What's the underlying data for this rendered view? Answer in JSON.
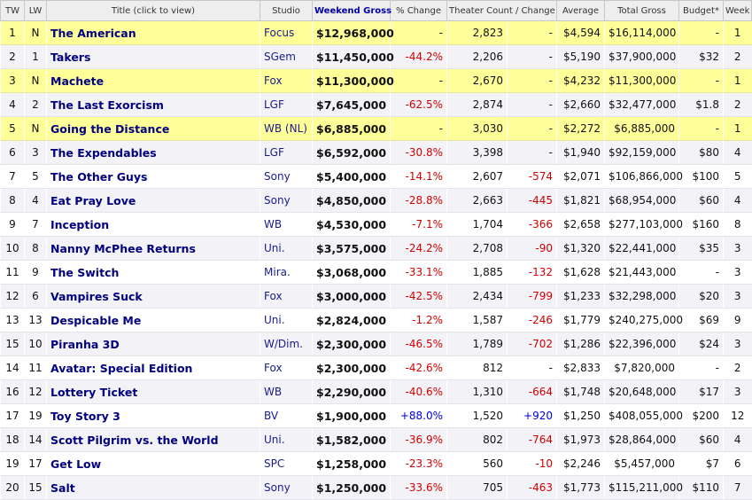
{
  "headers": {
    "tw": "TW",
    "lw": "LW",
    "title": "Title (click to view)",
    "studio": "Studio",
    "gross": "Weekend Gross",
    "change": "% Change",
    "theaters": "Theater Count / Change",
    "average": "Average",
    "total": "Total Gross",
    "budget": "Budget*",
    "week": "Week"
  },
  "rows": [
    {
      "tw": "1",
      "lw": "N",
      "title": "The American",
      "studio": "Focus",
      "gross": "$12,968,000",
      "change": "-",
      "theaters": "2,823",
      "theater_change": "-",
      "average": "$4,594",
      "total": "$16,114,000",
      "budget": "-",
      "week": "1",
      "is_new": true
    },
    {
      "tw": "2",
      "lw": "1",
      "title": "Takers",
      "studio": "SGem",
      "gross": "$11,450,000",
      "change": "-44.2%",
      "theaters": "2,206",
      "theater_change": "-",
      "average": "$5,190",
      "total": "$37,900,000",
      "budget": "$32",
      "week": "2",
      "is_new": false
    },
    {
      "tw": "3",
      "lw": "N",
      "title": "Machete",
      "studio": "Fox",
      "gross": "$11,300,000",
      "change": "-",
      "theaters": "2,670",
      "theater_change": "-",
      "average": "$4,232",
      "total": "$11,300,000",
      "budget": "-",
      "week": "1",
      "is_new": true
    },
    {
      "tw": "4",
      "lw": "2",
      "title": "The Last Exorcism",
      "studio": "LGF",
      "gross": "$7,645,000",
      "change": "-62.5%",
      "theaters": "2,874",
      "theater_change": "-",
      "average": "$2,660",
      "total": "$32,477,000",
      "budget": "$1.8",
      "week": "2",
      "is_new": false
    },
    {
      "tw": "5",
      "lw": "N",
      "title": "Going the Distance",
      "studio": "WB (NL)",
      "gross": "$6,885,000",
      "change": "-",
      "theaters": "3,030",
      "theater_change": "-",
      "average": "$2,272",
      "total": "$6,885,000",
      "budget": "-",
      "week": "1",
      "is_new": true
    },
    {
      "tw": "6",
      "lw": "3",
      "title": "The Expendables",
      "studio": "LGF",
      "gross": "$6,592,000",
      "change": "-30.8%",
      "theaters": "3,398",
      "theater_change": "-",
      "average": "$1,940",
      "total": "$92,159,000",
      "budget": "$80",
      "week": "4",
      "is_new": false
    },
    {
      "tw": "7",
      "lw": "5",
      "title": "The Other Guys",
      "studio": "Sony",
      "gross": "$5,400,000",
      "change": "-14.1%",
      "theaters": "2,607",
      "theater_change": "-574",
      "average": "$2,071",
      "total": "$106,866,000",
      "budget": "$100",
      "week": "5",
      "is_new": false
    },
    {
      "tw": "8",
      "lw": "4",
      "title": "Eat Pray Love",
      "studio": "Sony",
      "gross": "$4,850,000",
      "change": "-28.8%",
      "theaters": "2,663",
      "theater_change": "-445",
      "average": "$1,821",
      "total": "$68,954,000",
      "budget": "$60",
      "week": "4",
      "is_new": false
    },
    {
      "tw": "9",
      "lw": "7",
      "title": "Inception",
      "studio": "WB",
      "gross": "$4,530,000",
      "change": "-7.1%",
      "theaters": "1,704",
      "theater_change": "-366",
      "average": "$2,658",
      "total": "$277,103,000",
      "budget": "$160",
      "week": "8",
      "is_new": false
    },
    {
      "tw": "10",
      "lw": "8",
      "title": "Nanny McPhee Returns",
      "studio": "Uni.",
      "gross": "$3,575,000",
      "change": "-24.2%",
      "theaters": "2,708",
      "theater_change": "-90",
      "average": "$1,320",
      "total": "$22,441,000",
      "budget": "$35",
      "week": "3",
      "is_new": false
    },
    {
      "tw": "11",
      "lw": "9",
      "title": "The Switch",
      "studio": "Mira.",
      "gross": "$3,068,000",
      "change": "-33.1%",
      "theaters": "1,885",
      "theater_change": "-132",
      "average": "$1,628",
      "total": "$21,443,000",
      "budget": "-",
      "week": "3",
      "is_new": false
    },
    {
      "tw": "12",
      "lw": "6",
      "title": "Vampires Suck",
      "studio": "Fox",
      "gross": "$3,000,000",
      "change": "-42.5%",
      "theaters": "2,434",
      "theater_change": "-799",
      "average": "$1,233",
      "total": "$32,298,000",
      "budget": "$20",
      "week": "3",
      "is_new": false
    },
    {
      "tw": "13",
      "lw": "13",
      "title": "Despicable Me",
      "studio": "Uni.",
      "gross": "$2,824,000",
      "change": "-1.2%",
      "theaters": "1,587",
      "theater_change": "-246",
      "average": "$1,779",
      "total": "$240,275,000",
      "budget": "$69",
      "week": "9",
      "is_new": false
    },
    {
      "tw": "15",
      "lw": "10",
      "title": "Piranha 3D",
      "studio": "W/Dim.",
      "gross": "$2,300,000",
      "change": "-46.5%",
      "theaters": "1,789",
      "theater_change": "-702",
      "average": "$1,286",
      "total": "$22,396,000",
      "budget": "$24",
      "week": "3",
      "is_new": false
    },
    {
      "tw": "14",
      "lw": "11",
      "title": "Avatar: Special Edition",
      "studio": "Fox",
      "gross": "$2,300,000",
      "change": "-42.6%",
      "theaters": "812",
      "theater_change": "-",
      "average": "$2,833",
      "total": "$7,820,000",
      "budget": "-",
      "week": "2",
      "is_new": false
    },
    {
      "tw": "16",
      "lw": "12",
      "title": "Lottery Ticket",
      "studio": "WB",
      "gross": "$2,290,000",
      "change": "-40.6%",
      "theaters": "1,310",
      "theater_change": "-664",
      "average": "$1,748",
      "total": "$20,648,000",
      "budget": "$17",
      "week": "3",
      "is_new": false
    },
    {
      "tw": "17",
      "lw": "19",
      "title": "Toy Story 3",
      "studio": "BV",
      "gross": "$1,900,000",
      "change": "+88.0%",
      "theaters": "1,520",
      "theater_change": "+920",
      "average": "$1,250",
      "total": "$408,055,000",
      "budget": "$200",
      "week": "12",
      "is_new": false
    },
    {
      "tw": "18",
      "lw": "14",
      "title": "Scott Pilgrim vs. the World",
      "studio": "Uni.",
      "gross": "$1,582,000",
      "change": "-36.9%",
      "theaters": "802",
      "theater_change": "-764",
      "average": "$1,973",
      "total": "$28,864,000",
      "budget": "$60",
      "week": "4",
      "is_new": false
    },
    {
      "tw": "19",
      "lw": "17",
      "title": "Get Low",
      "studio": "SPC",
      "gross": "$1,258,000",
      "change": "-23.3%",
      "theaters": "560",
      "theater_change": "-10",
      "average": "$2,246",
      "total": "$5,457,000",
      "budget": "$7",
      "week": "6",
      "is_new": false
    },
    {
      "tw": "20",
      "lw": "15",
      "title": "Salt",
      "studio": "Sony",
      "gross": "$1,250,000",
      "change": "-33.6%",
      "theaters": "705",
      "theater_change": "-463",
      "average": "$1,773",
      "total": "$115,211,000",
      "budget": "$110",
      "week": "7",
      "is_new": false
    }
  ],
  "colors": {
    "new_release_row": "#ffff99",
    "negative": "#d00000",
    "positive": "#0000dd",
    "title_link": "#000080"
  }
}
